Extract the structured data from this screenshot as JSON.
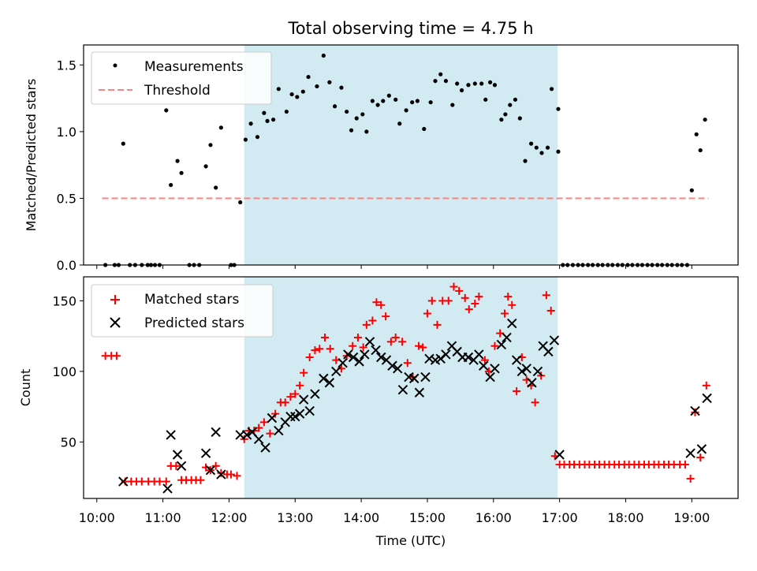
{
  "title": "Total observing time = 4.75 h",
  "colors": {
    "shade": "#add8e6",
    "threshold": "#ff8080",
    "matched": "#ff0000",
    "predicted": "#000000",
    "measurement": "#000000"
  },
  "chart_data": [
    {
      "type": "scatter",
      "ylabel": "Matched/Predicted stars",
      "xlim": [
        9.8,
        19.7
      ],
      "ylim": [
        0,
        1.65
      ],
      "yticks": [
        0.0,
        0.5,
        1.0,
        1.5
      ],
      "ytick_labels": [
        "0.0",
        "0.5",
        "1.0",
        "1.5"
      ],
      "legend": {
        "placement": "top-left",
        "entries": [
          "Measurements",
          "Threshold"
        ]
      },
      "shaded_region": [
        12.23,
        16.97
      ],
      "threshold": {
        "name": "Threshold",
        "y": 0.5,
        "x": [
          10.08,
          19.25
        ]
      },
      "series": [
        {
          "name": "Measurements",
          "x": [
            10.13,
            10.27,
            10.33,
            10.4,
            10.5,
            10.58,
            10.68,
            10.77,
            10.82,
            10.88,
            10.95,
            11.05,
            11.12,
            11.22,
            11.28,
            11.4,
            11.47,
            11.55,
            11.65,
            11.72,
            11.8,
            11.88,
            12.03,
            12.08,
            12.17,
            12.25,
            12.33,
            12.43,
            12.53,
            12.58,
            12.67,
            12.75,
            12.87,
            12.95,
            13.03,
            13.12,
            13.2,
            13.33,
            13.43,
            13.52,
            13.6,
            13.7,
            13.78,
            13.85,
            13.93,
            14.02,
            14.08,
            14.17,
            14.25,
            14.33,
            14.42,
            14.52,
            14.58,
            14.68,
            14.77,
            14.85,
            14.95,
            15.05,
            15.12,
            15.2,
            15.28,
            15.38,
            15.45,
            15.52,
            15.62,
            15.72,
            15.82,
            15.88,
            15.95,
            16.02,
            16.12,
            16.18,
            16.25,
            16.33,
            16.4,
            16.48,
            16.57,
            16.65,
            16.73,
            16.82,
            16.88,
            16.98
          ],
          "y": [
            0,
            0,
            0,
            0.91,
            0,
            0,
            0,
            0,
            0,
            0,
            0,
            1.16,
            0.6,
            0.78,
            0.69,
            0,
            0,
            0,
            0.74,
            0.9,
            0.58,
            1.03,
            0,
            0,
            0.47,
            0.94,
            1.06,
            0.96,
            1.14,
            1.08,
            1.09,
            1.32,
            1.15,
            1.28,
            1.26,
            1.3,
            1.41,
            1.34,
            1.57,
            1.37,
            1.19,
            1.33,
            1.15,
            1.01,
            1.1,
            1.13,
            1.0,
            1.23,
            1.2,
            1.23,
            1.27,
            1.24,
            1.06,
            1.16,
            1.22,
            1.23,
            1.02,
            1.22,
            1.38,
            1.43,
            1.38,
            1.2,
            1.36,
            1.31,
            1.35,
            1.36,
            1.36,
            1.24,
            1.37,
            1.35,
            1.09,
            1.13,
            1.2,
            1.24,
            1.1,
            0.78,
            0.91,
            0.88,
            0.84,
            0.88,
            1.32,
            1.17
          ]
        },
        {
          "name": "Measurements",
          "x": [
            16.98,
            17.05,
            17.12,
            17.2,
            17.28,
            17.35,
            17.43,
            17.5,
            17.58,
            17.65,
            17.73,
            17.8,
            17.88,
            17.95,
            18.03,
            18.1,
            18.18,
            18.25,
            18.33,
            18.4,
            18.48,
            18.55,
            18.63,
            18.7,
            18.78,
            18.85,
            18.93,
            19.0,
            19.07,
            19.13,
            19.2
          ],
          "y": [
            0.85,
            0,
            0,
            0,
            0,
            0,
            0,
            0,
            0,
            0,
            0,
            0,
            0,
            0,
            0,
            0,
            0,
            0,
            0,
            0,
            0,
            0,
            0,
            0,
            0,
            0,
            0,
            0.56,
            0.98,
            0.86,
            1.09
          ]
        }
      ]
    },
    {
      "type": "scatter",
      "xlabel": "Time (UTC)",
      "ylabel": "Count",
      "xlim": [
        9.8,
        19.7
      ],
      "ylim": [
        10,
        167
      ],
      "yticks": [
        50,
        100,
        150
      ],
      "ytick_labels": [
        "50",
        "100",
        "150"
      ],
      "xticks": [
        10,
        11,
        12,
        13,
        14,
        15,
        16,
        17,
        18,
        19
      ],
      "xtick_labels": [
        "10:00",
        "11:00",
        "12:00",
        "13:00",
        "14:00",
        "15:00",
        "16:00",
        "17:00",
        "18:00",
        "19:00"
      ],
      "legend": {
        "placement": "top-left",
        "entries": [
          "Matched stars",
          "Predicted stars"
        ]
      },
      "shaded_region": [
        12.23,
        16.97
      ],
      "series": [
        {
          "name": "Matched stars",
          "x": [
            10.13,
            10.22,
            10.3,
            10.43,
            10.52,
            10.6,
            10.68,
            10.78,
            10.87,
            10.95,
            11.05,
            11.12,
            11.2,
            11.28,
            11.35,
            11.43,
            11.5,
            11.57,
            11.65,
            11.72,
            11.8,
            11.88,
            11.97,
            12.03,
            12.12,
            12.23,
            12.3,
            12.38,
            12.45,
            12.53,
            12.62,
            12.7,
            12.78,
            12.85,
            12.93,
            13.0,
            13.07,
            13.13,
            13.22,
            13.3,
            13.37,
            13.45,
            13.53,
            13.62,
            13.7,
            13.78,
            13.87,
            13.95,
            14.03,
            14.08,
            14.17,
            14.23,
            14.3,
            14.37,
            14.45,
            14.52,
            14.62,
            14.7,
            14.78,
            14.87,
            14.93,
            15.0,
            15.07,
            15.15,
            15.23,
            15.32,
            15.4,
            15.48,
            15.57,
            15.63,
            15.72,
            15.78,
            15.87,
            15.93,
            16.02,
            16.1,
            16.17,
            16.22,
            16.28,
            16.35,
            16.43,
            16.5,
            16.57,
            16.63,
            16.72,
            16.8,
            16.87,
            16.93,
            17.0,
            17.07,
            17.15,
            17.22,
            17.3,
            17.38,
            17.45,
            17.53,
            17.6,
            17.68,
            17.75,
            17.83,
            17.9,
            17.98,
            18.05,
            18.13,
            18.2,
            18.28,
            18.35,
            18.43,
            18.5,
            18.58,
            18.65,
            18.73,
            18.82,
            18.9,
            18.98,
            19.05,
            19.13,
            19.22
          ],
          "y": [
            111,
            111,
            111,
            22,
            22,
            22,
            22,
            22,
            22,
            22,
            22,
            33,
            33,
            23,
            23,
            23,
            23,
            23,
            32,
            30,
            33,
            28,
            27,
            27,
            26,
            52,
            58,
            58,
            60,
            64,
            56,
            70,
            78,
            78,
            82,
            84,
            90,
            99,
            110,
            115,
            116,
            124,
            116,
            108,
            102,
            111,
            118,
            124,
            117,
            133,
            136,
            149,
            147,
            139,
            121,
            124,
            121,
            106,
            96,
            118,
            117,
            141,
            150,
            133,
            150,
            150,
            160,
            157,
            152,
            144,
            148,
            153,
            108,
            100,
            118,
            127,
            141,
            153,
            147,
            86,
            110,
            94,
            90,
            78,
            97,
            154,
            143,
            40,
            34,
            34,
            34,
            34,
            34,
            34,
            34,
            34,
            34,
            34,
            34,
            34,
            34,
            34,
            34,
            34,
            34,
            34,
            34,
            34,
            34,
            34,
            34,
            34,
            34,
            34,
            24,
            71,
            39,
            90
          ]
        },
        {
          "name": "Predicted stars",
          "x": [
            10.4,
            11.07,
            11.12,
            11.22,
            11.28,
            11.65,
            11.72,
            11.8,
            11.88,
            12.17,
            12.27,
            12.35,
            12.45,
            12.55,
            12.65,
            12.75,
            12.85,
            12.93,
            13.0,
            13.07,
            13.13,
            13.22,
            13.3,
            13.43,
            13.52,
            13.62,
            13.72,
            13.8,
            13.88,
            13.97,
            14.05,
            14.13,
            14.22,
            14.3,
            14.38,
            14.47,
            14.55,
            14.63,
            14.72,
            14.8,
            14.88,
            14.97,
            15.03,
            15.12,
            15.2,
            15.28,
            15.37,
            15.45,
            15.53,
            15.62,
            15.7,
            15.78,
            15.85,
            15.95,
            16.02,
            16.12,
            16.2,
            16.28,
            16.35,
            16.43,
            16.5,
            16.58,
            16.67,
            16.75,
            16.83,
            16.92,
            17.0,
            18.98,
            19.05,
            19.15,
            19.23
          ],
          "y": [
            22,
            17,
            55,
            41,
            33,
            42,
            30,
            57,
            27,
            55,
            55,
            57,
            52,
            46,
            67,
            58,
            64,
            68,
            68,
            70,
            80,
            72,
            84,
            95,
            92,
            100,
            106,
            112,
            110,
            107,
            112,
            121,
            115,
            110,
            108,
            104,
            102,
            87,
            96,
            95,
            85,
            96,
            109,
            108,
            109,
            112,
            118,
            114,
            110,
            110,
            108,
            112,
            104,
            96,
            102,
            119,
            124,
            134,
            108,
            100,
            102,
            92,
            100,
            118,
            114,
            122,
            41,
            42,
            72,
            45,
            81
          ]
        }
      ]
    }
  ]
}
